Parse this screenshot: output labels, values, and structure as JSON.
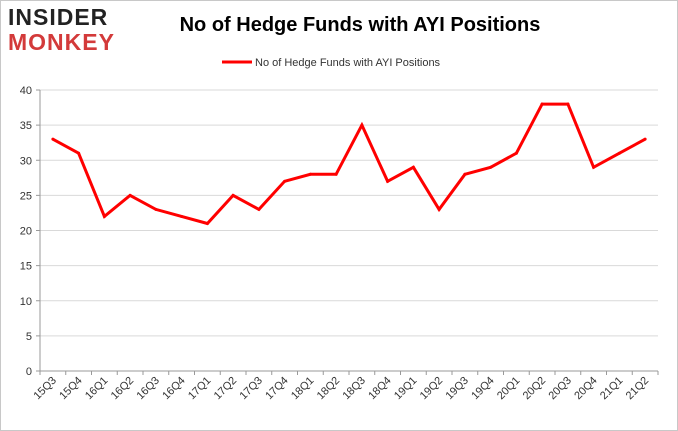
{
  "logo": {
    "line1": "INSIDER",
    "line2": "MONKEY"
  },
  "chart_data": {
    "type": "line",
    "title": "No of Hedge Funds with AYI Positions",
    "xlabel": "",
    "ylabel": "",
    "ylim": [
      0,
      40
    ],
    "yticks": [
      0,
      5,
      10,
      15,
      20,
      25,
      30,
      35,
      40
    ],
    "grid": "horizontal",
    "legend_position": "top-center",
    "categories": [
      "15Q3",
      "15Q4",
      "16Q1",
      "16Q2",
      "16Q3",
      "16Q4",
      "17Q1",
      "17Q2",
      "17Q3",
      "17Q4",
      "18Q1",
      "18Q2",
      "18Q3",
      "18Q4",
      "19Q1",
      "19Q2",
      "19Q3",
      "19Q4",
      "20Q1",
      "20Q2",
      "20Q3",
      "20Q4",
      "21Q1",
      "21Q2"
    ],
    "series": [
      {
        "name": "No of Hedge Funds with AYI Positions",
        "color": "#ff0000",
        "values": [
          33,
          31,
          22,
          25,
          23,
          22,
          21,
          25,
          23,
          27,
          28,
          28,
          35,
          27,
          29,
          23,
          28,
          29,
          31,
          38,
          38,
          29,
          31,
          33
        ]
      }
    ]
  }
}
